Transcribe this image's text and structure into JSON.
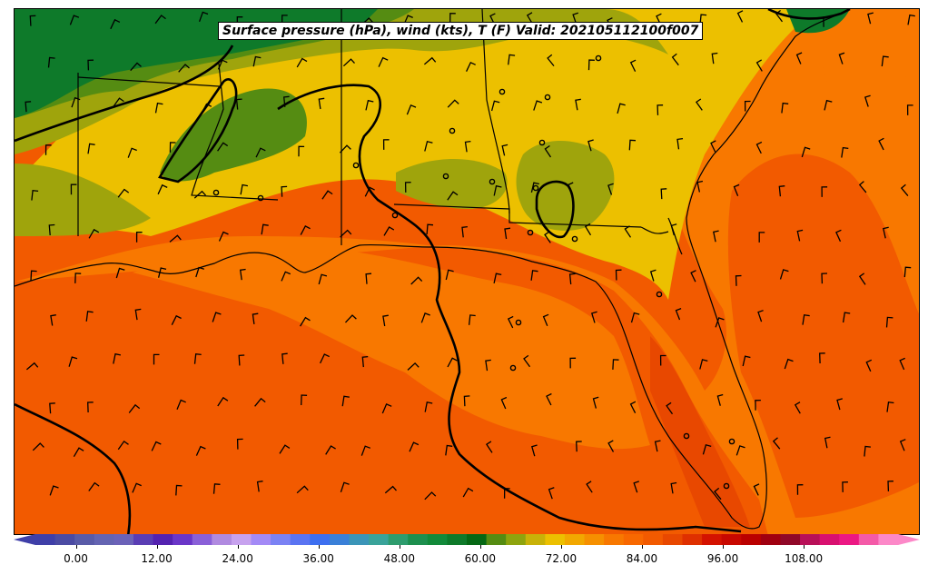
{
  "title": "Surface pressure (hPa), wind (kts), T (F) Valid: 202105112100f007",
  "colorbar": {
    "min": -6,
    "max": 122,
    "step": 3,
    "tick_values": [
      0,
      12,
      24,
      36,
      48,
      60,
      72,
      84,
      96,
      108
    ],
    "tick_labels": [
      "0.00",
      "12.00",
      "24.00",
      "36.00",
      "48.00",
      "60.00",
      "72.00",
      "84.00",
      "96.00",
      "108.00"
    ],
    "colors": [
      "#3f3fa8",
      "#4b4ba3",
      "#595ba8",
      "#6464b2",
      "#6b62b8",
      "#5a3db4",
      "#5422b0",
      "#6a36c8",
      "#8a60d8",
      "#b08ae0",
      "#c7a2ee",
      "#a38af6",
      "#7b82f4",
      "#5a74f2",
      "#3d6ff0",
      "#3a80d8",
      "#3b95b8",
      "#3aa39a",
      "#2e9c6e",
      "#1d8f4e",
      "#128a3a",
      "#0e7a2a",
      "#056814",
      "#558c12",
      "#8ea40e",
      "#c8b208",
      "#ecc000",
      "#f2a800",
      "#f69000",
      "#f87800",
      "#f86800",
      "#f25a00",
      "#e84800",
      "#df3000",
      "#d41200",
      "#c80800",
      "#ba0000",
      "#a00010",
      "#900828",
      "#b81058",
      "#d81070",
      "#ec1884",
      "#f45aa8",
      "#fc88c8"
    ]
  },
  "temperature_regions": [
    {
      "name": "northern-dark-green",
      "value_F": 61
    },
    {
      "name": "mid-olive",
      "value_F": 64
    },
    {
      "name": "central-yellow",
      "value_F": 68
    },
    {
      "name": "coastal-orange",
      "value_F": 72
    },
    {
      "name": "gulf-warm",
      "value_F": 76
    },
    {
      "name": "gulf-deep-warm",
      "value_F": 79
    },
    {
      "name": "atlantic-warm",
      "value_F": 80
    }
  ]
}
